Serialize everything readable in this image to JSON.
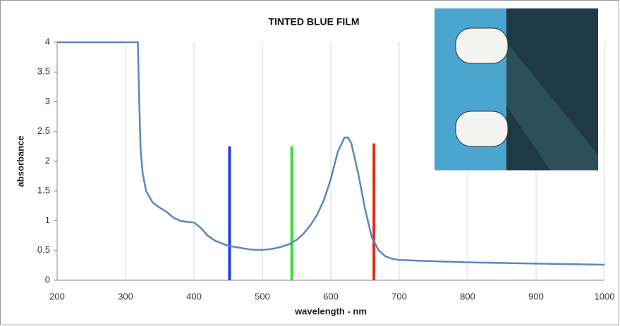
{
  "chart_data": {
    "type": "line",
    "title": "TINTED BLUE FILM",
    "x_label": "wavelength - nm",
    "y_label": "absorbance",
    "xlim": [
      200,
      1000
    ],
    "xticks": [
      200,
      300,
      400,
      500,
      600,
      700,
      800,
      900,
      1000
    ],
    "ylim": [
      0,
      4
    ],
    "yticks": [
      0,
      0.5,
      1,
      1.5,
      2,
      2.5,
      3,
      3.5,
      4
    ],
    "grid": "x",
    "series": [
      {
        "name": "absorbance",
        "color": "#5b86bd",
        "x": [
          200,
          318,
          320,
          322,
          325,
          330,
          340,
          350,
          360,
          370,
          380,
          390,
          400,
          410,
          420,
          430,
          440,
          450,
          460,
          470,
          480,
          490,
          500,
          510,
          520,
          530,
          540,
          550,
          560,
          570,
          580,
          590,
          600,
          610,
          620,
          625,
          630,
          640,
          650,
          660,
          670,
          680,
          690,
          700,
          750,
          800,
          850,
          900,
          950,
          1000
        ],
        "values": [
          4,
          4,
          3.0,
          2.2,
          1.8,
          1.5,
          1.3,
          1.22,
          1.15,
          1.05,
          1.0,
          0.98,
          0.97,
          0.88,
          0.75,
          0.67,
          0.62,
          0.58,
          0.56,
          0.54,
          0.52,
          0.51,
          0.51,
          0.52,
          0.54,
          0.57,
          0.61,
          0.68,
          0.78,
          0.92,
          1.1,
          1.35,
          1.7,
          2.15,
          2.4,
          2.4,
          2.3,
          1.8,
          1.2,
          0.72,
          0.5,
          0.4,
          0.36,
          0.34,
          0.32,
          0.3,
          0.29,
          0.28,
          0.27,
          0.26
        ]
      }
    ],
    "markers": [
      {
        "x": 452,
        "top": 2.25,
        "color": "#1f3fe0"
      },
      {
        "x": 543,
        "top": 2.25,
        "color": "#33e033"
      },
      {
        "x": 663,
        "top": 2.3,
        "color": "#e0301f"
      }
    ]
  }
}
